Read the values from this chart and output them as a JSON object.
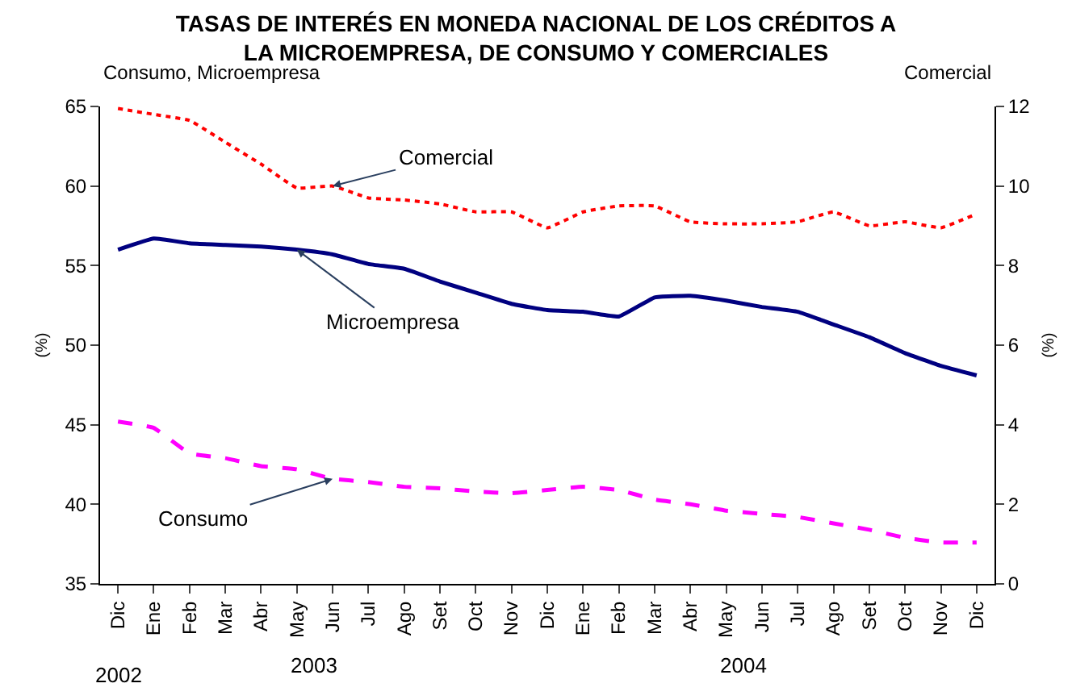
{
  "chart_data": {
    "type": "line",
    "title": "TASAS DE INTERÉS EN MONEDA NACIONAL DE LOS CRÉDITOS A\nLA MICROEMPRESA, DE CONSUMO Y COMERCIALES",
    "categories": [
      "Dic",
      "Ene",
      "Feb",
      "Mar",
      "Abr",
      "May",
      "Jun",
      "Jul",
      "Ago",
      "Set",
      "Oct",
      "Nov",
      "Dic",
      "Ene",
      "Feb",
      "Mar",
      "Abr",
      "May",
      "Jun",
      "Jul",
      "Ago",
      "Set",
      "Oct",
      "Nov",
      "Dic"
    ],
    "series": [
      {
        "name": "Comercial",
        "color": "#ff0000",
        "axis": "y2",
        "line_style": "dotted",
        "values": [
          11.95,
          11.8,
          11.65,
          11.1,
          10.55,
          9.95,
          10.0,
          9.7,
          9.65,
          9.55,
          9.35,
          9.35,
          8.95,
          9.35,
          9.5,
          9.5,
          9.1,
          9.05,
          9.05,
          9.1,
          9.35,
          9.0,
          9.1,
          8.95,
          9.3
        ]
      },
      {
        "name": "Microempresa",
        "color": "#000080",
        "line_style": "solid",
        "values": [
          56.0,
          56.7,
          56.4,
          56.3,
          56.2,
          56.0,
          55.7,
          55.1,
          54.8,
          54.0,
          53.3,
          52.6,
          52.2,
          52.1,
          51.8,
          53.0,
          53.1,
          52.8,
          52.4,
          52.1,
          51.3,
          50.5,
          49.5,
          48.7,
          48.1
        ]
      },
      {
        "name": "Consumo",
        "color": "#ff00ff",
        "line_style": "dashed",
        "values": [
          45.2,
          44.8,
          43.2,
          42.9,
          42.4,
          42.2,
          41.6,
          41.4,
          41.1,
          41.0,
          40.8,
          40.7,
          40.9,
          41.1,
          40.9,
          40.3,
          40.0,
          39.6,
          39.4,
          39.2,
          38.8,
          38.4,
          37.9,
          37.6,
          37.6
        ]
      }
    ],
    "ylabel": "(%)",
    "y2label": "(%)",
    "ylim": [
      35,
      65
    ],
    "yticks": [
      35,
      40,
      45,
      50,
      55,
      60,
      65
    ],
    "y2lim": [
      0,
      12
    ],
    "y2ticks": [
      0,
      2,
      4,
      6,
      8,
      10,
      12
    ],
    "annotations": [
      "Consumo, Microempresa",
      "Comercial",
      "2002",
      "2003",
      "2004"
    ],
    "legend": false,
    "marker": "none"
  }
}
